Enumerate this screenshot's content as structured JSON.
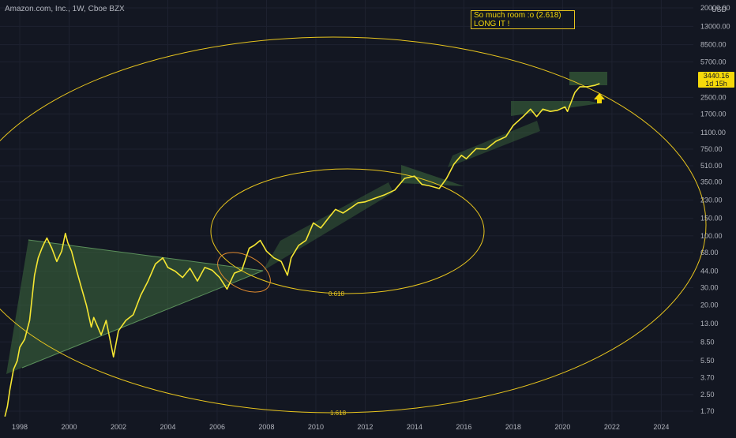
{
  "header": {
    "symbol": "Amazon.com, Inc., 1W, Cboe BZX"
  },
  "annotation": {
    "line1": "So much room :o (2.618)",
    "line2": "LONG IT !"
  },
  "price_tag": {
    "price": "3440.16",
    "countdown": "1d 15h"
  },
  "fib_labels": {
    "inner": "0.618",
    "outer": "1.618"
  },
  "colors": {
    "background": "#131722",
    "price_line": "#f5e632",
    "ellipse": "#e8c51e",
    "shading": "#3e6b3e",
    "grid": "#1e2230",
    "axis_text": "#b2b5be"
  },
  "chart_data": {
    "type": "line",
    "title": "Amazon.com, Inc., 1W, Cboe BZX",
    "y_scale": "log",
    "ylim": [
      1.2,
      24000
    ],
    "xlim": [
      1997.2,
      2025.3
    ],
    "y_unit": "USD",
    "y_ticks": [
      "1.70",
      "2.50",
      "3.70",
      "5.50",
      "8.50",
      "13.00",
      "20.00",
      "30.00",
      "44.00",
      "68.00",
      "100.00",
      "150.00",
      "230.00",
      "350.00",
      "510.00",
      "750.00",
      "1100.00",
      "1700.00",
      "2500.00",
      "5700.00",
      "8500.00",
      "13000.00",
      "20000.00"
    ],
    "x_ticks": [
      "1998",
      "2000",
      "2002",
      "2004",
      "2006",
      "2008",
      "2010",
      "2012",
      "2014",
      "2016",
      "2018",
      "2020",
      "2022",
      "2024"
    ],
    "grid": true,
    "series": [
      {
        "x": [
          1997.4,
          1997.5,
          1997.6,
          1997.75,
          1997.9,
          1998.0,
          1998.2,
          1998.4,
          1998.6,
          1998.75,
          1998.9,
          1999.0,
          1999.1,
          1999.3,
          1999.5,
          1999.7,
          1999.85,
          1999.95,
          2000.1,
          2000.3,
          2000.5,
          2000.7,
          2000.9,
          2001.0,
          2001.3,
          2001.5,
          2001.7,
          2001.8,
          2002.0,
          2002.3,
          2002.6,
          2002.9,
          2003.2,
          2003.5,
          2003.8,
          2004.0,
          2004.3,
          2004.6,
          2004.9,
          2005.2,
          2005.5,
          2005.8,
          2006.1,
          2006.4,
          2006.7,
          2007.0,
          2007.3,
          2007.5,
          2007.75,
          2008.0,
          2008.3,
          2008.6,
          2008.85,
          2009.0,
          2009.3,
          2009.6,
          2009.9,
          2010.2,
          2010.5,
          2010.8,
          2011.1,
          2011.4,
          2011.7,
          2012.0,
          2012.4,
          2012.8,
          2013.2,
          2013.6,
          2014.0,
          2014.3,
          2014.6,
          2015.0,
          2015.3,
          2015.6,
          2015.9,
          2016.1,
          2016.5,
          2016.9,
          2017.3,
          2017.7,
          2018.0,
          2018.4,
          2018.7,
          2018.95,
          2019.2,
          2019.5,
          2019.8,
          2020.1,
          2020.2,
          2020.5,
          2020.7,
          2021.0,
          2021.3,
          2021.5
        ],
        "y": [
          1.5,
          1.9,
          2.8,
          4.5,
          5.5,
          7.5,
          9,
          14,
          40,
          60,
          75,
          85,
          95,
          75,
          55,
          70,
          106,
          85,
          70,
          45,
          30,
          20,
          12,
          15,
          10,
          14,
          8,
          6,
          11,
          14,
          16,
          25,
          35,
          52,
          60,
          48,
          44,
          38,
          47,
          35,
          48,
          45,
          38,
          29,
          42,
          45,
          75,
          80,
          90,
          70,
          60,
          55,
          40,
          60,
          80,
          90,
          135,
          120,
          150,
          185,
          170,
          190,
          215,
          220,
          240,
          260,
          290,
          380,
          400,
          330,
          320,
          300,
          380,
          530,
          650,
          600,
          760,
          750,
          900,
          1000,
          1300,
          1600,
          1900,
          1600,
          1900,
          1800,
          1850,
          2000,
          1800,
          2800,
          3200,
          3200,
          3300,
          3440
        ]
      }
    ],
    "annotations": [
      "So much room :o (2.618)",
      "LONG IT !",
      "0.618",
      "1.618"
    ]
  }
}
